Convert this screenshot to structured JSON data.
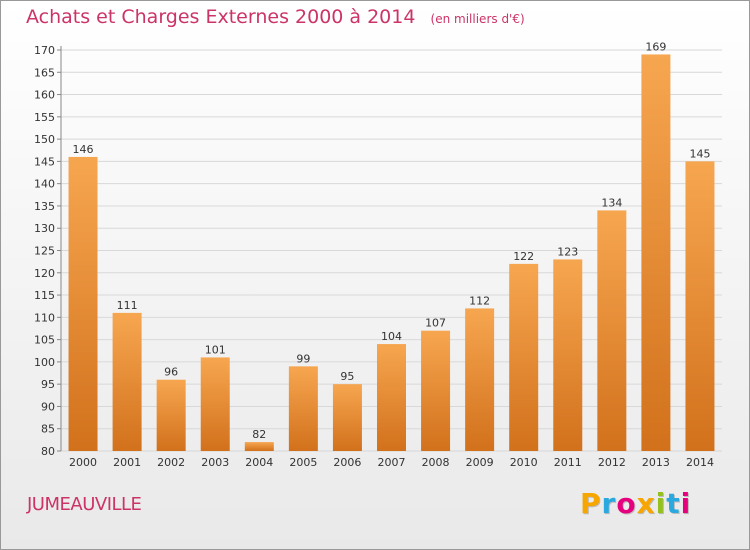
{
  "title": "Achats et Charges Externes 2000 à 2014",
  "unit": "(en milliers d'€)",
  "commune": "JUMEAUVILLE",
  "logo": {
    "text": "Proxiti",
    "letters": [
      {
        "char": "P",
        "color": "#f7a600"
      },
      {
        "char": "r",
        "color": "#2aa9e0"
      },
      {
        "char": "o",
        "color": "#e6007e"
      },
      {
        "char": "x",
        "color": "#f7a600"
      },
      {
        "char": "i",
        "color": "#95c11f"
      },
      {
        "char": "t",
        "color": "#2aa9e0"
      },
      {
        "char": "i",
        "color": "#e6007e"
      }
    ]
  },
  "colors": {
    "bar_top": "#f7a650",
    "bar_bottom": "#d2711c",
    "title": "#cc3366",
    "grid": "#d8d8d8",
    "axis_text": "#333333"
  },
  "chart_data": {
    "type": "bar",
    "categories": [
      "2000",
      "2001",
      "2002",
      "2003",
      "2004",
      "2005",
      "2006",
      "2007",
      "2008",
      "2009",
      "2010",
      "2011",
      "2012",
      "2013",
      "2014"
    ],
    "values": [
      146,
      111,
      96,
      101,
      82,
      99,
      95,
      104,
      107,
      112,
      122,
      123,
      134,
      169,
      145
    ],
    "title": "Achats et Charges Externes 2000 à 2014",
    "xlabel": "",
    "ylabel": "",
    "ylim": [
      80,
      170
    ],
    "ytick_step": 5,
    "grid": true,
    "data_labels": true,
    "legend": "none"
  }
}
